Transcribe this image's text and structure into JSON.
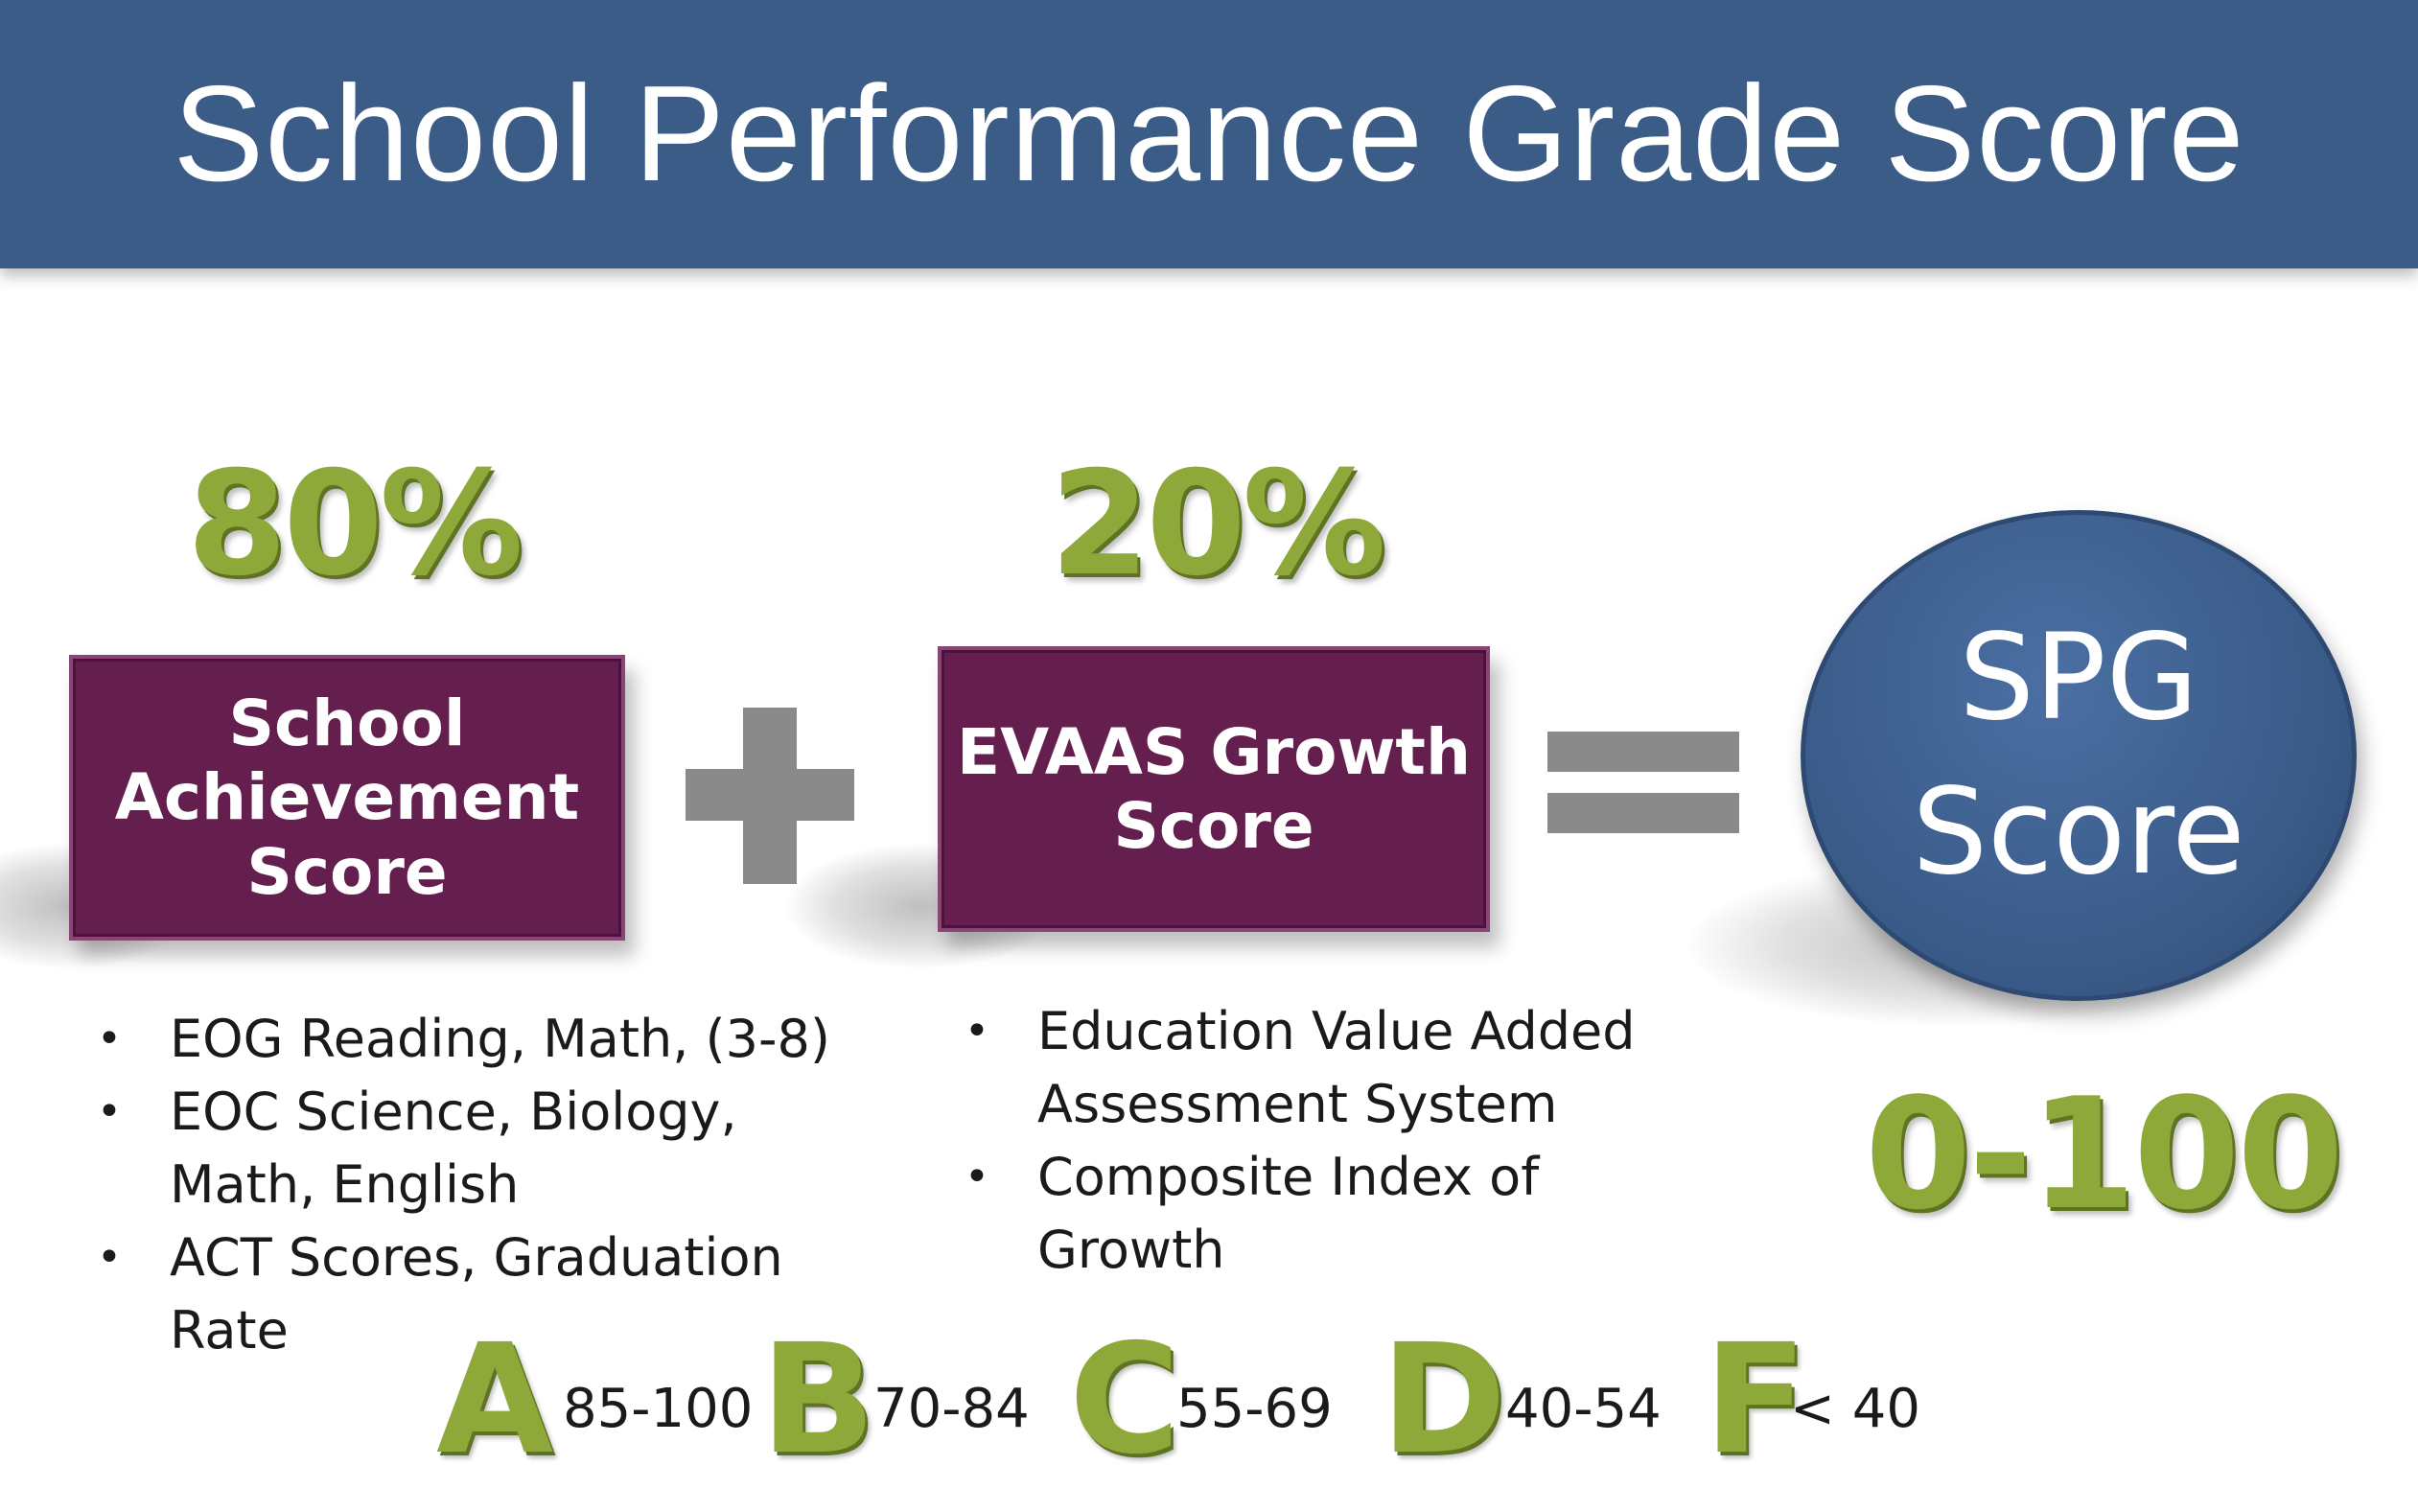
{
  "title": "School Performance Grade Score",
  "achievement": {
    "percent": "80%",
    "box_lines": [
      "School",
      "Achievement",
      "Score"
    ],
    "bullets": [
      "EOG Reading, Math, (3-8)",
      "EOC Science, Biology, Math, English",
      "ACT Scores, Graduation Rate"
    ]
  },
  "growth": {
    "percent": "20%",
    "box_lines": [
      "EVAAS Growth",
      "Score"
    ],
    "bullets": [
      "Education Value Added Assessment System",
      "Composite Index of Growth"
    ]
  },
  "operators": {
    "plus": "plus-sign",
    "equals": "equals-sign"
  },
  "result": {
    "lines": [
      "SPG",
      "Score"
    ],
    "range": "0-100"
  },
  "grades": [
    {
      "letter": "A",
      "range": "85-100"
    },
    {
      "letter": "B",
      "range": "70-84"
    },
    {
      "letter": "C",
      "range": "55-69"
    },
    {
      "letter": "D",
      "range": "40-54"
    },
    {
      "letter": "F",
      "range": "< 40"
    }
  ],
  "colors": {
    "banner": "#3b5c87",
    "box": "#641f4e",
    "accent_green": "#8fa83a",
    "operator_gray": "#8a8a8a",
    "circle": "#3b5c8a"
  }
}
